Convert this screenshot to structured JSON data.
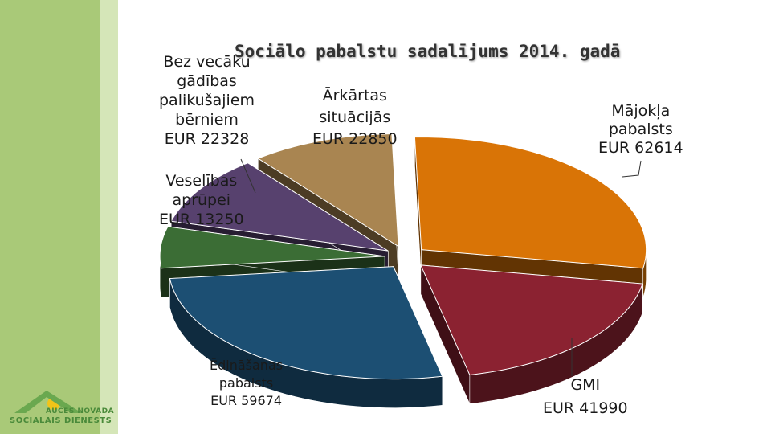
{
  "colors": {
    "band_dark": "#a9c978",
    "band_light": "#d5e6b8",
    "title": "#333333"
  },
  "chart_data": {
    "type": "pie",
    "title": "Sociālo pabalstu sadalījums 2014. gadā",
    "legend": "none",
    "slices": [
      {
        "name": "Mājokļa pabalsts",
        "label_lines": [
          "Mājokļa",
          "pabalsts",
          "EUR 62614"
        ],
        "value": 62614,
        "color": "#d97406"
      },
      {
        "name": "GMI",
        "label_lines": [
          "GMI",
          "EUR 41990"
        ],
        "value": 41990,
        "color": "#8b2231"
      },
      {
        "name": "Ēdināšanas pabalsts",
        "label_lines": [
          "Ēdināšanas",
          "pabalsts",
          "EUR 59674"
        ],
        "value": 59674,
        "color": "#1c4f73"
      },
      {
        "name": "Veselības aprūpei",
        "label_lines": [
          "Veselības",
          "aprūpei",
          "EUR 13250"
        ],
        "value": 13250,
        "color": "#3b6d35"
      },
      {
        "name": "Bez vecāku gādības palikušajiem bērniem",
        "label_lines": [
          "Bez vecāku",
          "gādības",
          "palikušajiem",
          "bērniem",
          "EUR 22328"
        ],
        "value": 22328,
        "color": "#57416e"
      },
      {
        "name": "Ārkārtas situācijās",
        "label_lines": [
          "Ārkārtas",
          "situācijās",
          "EUR 22850"
        ],
        "value": 22850,
        "color": "#a98551"
      }
    ]
  },
  "logo": {
    "line1": "AUCES NOVADA",
    "line2": "SOCIĀLAIS DIENESTS"
  }
}
